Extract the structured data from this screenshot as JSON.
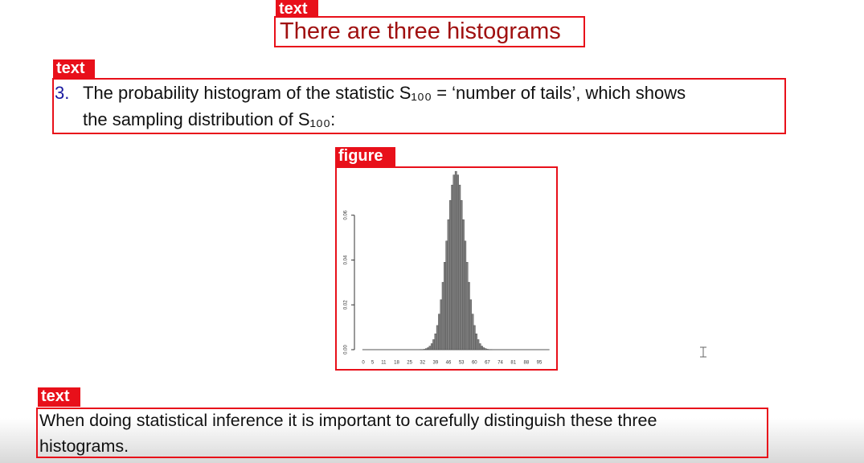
{
  "title": {
    "tag": "text",
    "text": "There are three histograms"
  },
  "item": {
    "tag": "text",
    "number": "3.",
    "lines": [
      "The probability histogram of the statistic S₁₀₀ = ‘number of tails’, which shows",
      "the sampling distribution of S₁₀₀:"
    ]
  },
  "figure": {
    "tag": "figure",
    "chart_data": {
      "type": "bar",
      "color": "#808080",
      "x": [
        30,
        31,
        32,
        33,
        34,
        35,
        36,
        37,
        38,
        39,
        40,
        41,
        42,
        43,
        44,
        45,
        46,
        47,
        48,
        49,
        50,
        51,
        52,
        53,
        54,
        55,
        56,
        57,
        58,
        59,
        60,
        61,
        62,
        63,
        64,
        65,
        66,
        67,
        68,
        69,
        70
      ],
      "values": [
        0.0,
        0.0001,
        0.0001,
        0.0002,
        0.0005,
        0.0009,
        0.0016,
        0.0027,
        0.0045,
        0.0071,
        0.0108,
        0.0159,
        0.0223,
        0.0301,
        0.039,
        0.0485,
        0.058,
        0.0666,
        0.0735,
        0.078,
        0.0796,
        0.078,
        0.0735,
        0.0666,
        0.058,
        0.0485,
        0.039,
        0.0301,
        0.0223,
        0.0159,
        0.0108,
        0.0071,
        0.0045,
        0.0027,
        0.0016,
        0.0009,
        0.0005,
        0.0002,
        0.0001,
        0.0001,
        0.0
      ],
      "xlim": [
        0,
        100
      ],
      "ylim": [
        0,
        0.08
      ],
      "xticks": [
        0,
        5,
        11,
        18,
        25,
        32,
        39,
        46,
        53,
        60,
        67,
        74,
        81,
        88,
        95
      ],
      "yticks": [
        {
          "value": 0,
          "label": "0.00"
        },
        {
          "value": 0.02,
          "label": "0.02"
        },
        {
          "value": 0.04,
          "label": "0.04"
        },
        {
          "value": 0.06,
          "label": "0.06"
        }
      ]
    }
  },
  "note": {
    "tag": "text",
    "lines": [
      "When doing statistical inference it is important to carefully distinguish these three",
      "histograms."
    ]
  }
}
